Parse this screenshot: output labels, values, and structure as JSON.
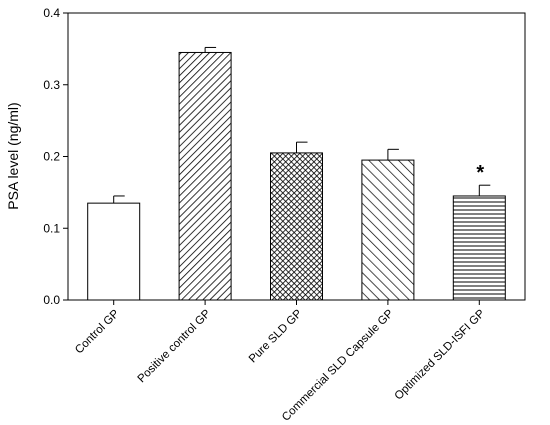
{
  "chart_data": {
    "type": "bar",
    "title": "",
    "xlabel": "",
    "ylabel": "PSA level (ng/ml)",
    "ylim": [
      0,
      0.4
    ],
    "yticks": [
      "0.0",
      "0.1",
      "0.2",
      "0.3",
      "0.4"
    ],
    "grid": false,
    "categories": [
      "Control GP",
      "Positive control GP",
      "Pure SLD GP",
      "Commercial SLD Capsule GP",
      "Optimized SLD-ISFI GP"
    ],
    "values": [
      0.135,
      0.345,
      0.205,
      0.195,
      0.145
    ],
    "errors": [
      0.01,
      0.007,
      0.015,
      0.015,
      0.015
    ],
    "fills": [
      "white",
      "diagonal-dense",
      "crosshatch",
      "diagonal-wide",
      "horizontal-lines"
    ],
    "annotations": [
      {
        "category_index": 4,
        "text": "*"
      }
    ],
    "colors": {
      "bar_stroke": "#000000",
      "pattern": "#000000"
    }
  }
}
